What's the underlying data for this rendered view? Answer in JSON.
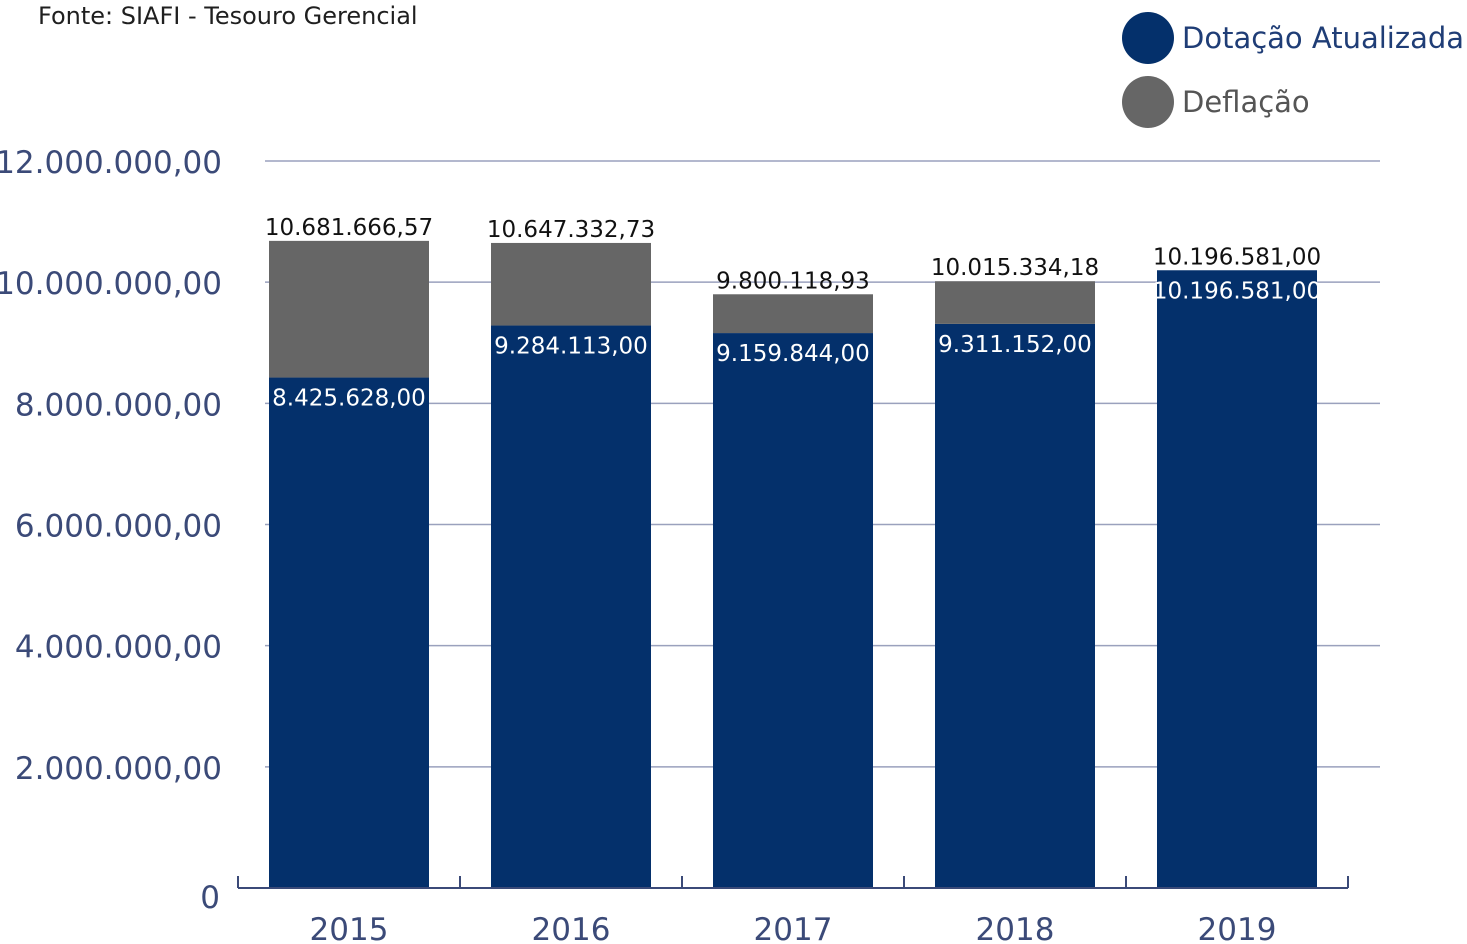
{
  "source_note": "Fonte: SIAFI - Tesouro Gerencial",
  "colors": {
    "dotacao": "#04306b",
    "deflacao": "#666666",
    "axis_text": "#3b4a78",
    "grid": "#9aa1bd",
    "axis": "#3b4a78"
  },
  "legend": [
    {
      "label": "Dotação Atualizada",
      "color": "#04306b",
      "text_color": "#1f3d76"
    },
    {
      "label": "Deflação",
      "color": "#666666",
      "text_color": "#555555"
    }
  ],
  "chart_data": {
    "type": "bar",
    "stacked": true,
    "categories": [
      "2015",
      "2016",
      "2017",
      "2018",
      "2019"
    ],
    "series": [
      {
        "name": "Dotação Atualizada",
        "values": [
          8425628.0,
          9284113.0,
          9159844.0,
          9311152.0,
          10196581.0
        ]
      },
      {
        "name": "Deflação",
        "values": [
          2256038.57,
          1363219.73,
          640274.93,
          704182.18,
          0
        ]
      }
    ],
    "bar_labels": [
      "8.425.628,00",
      "9.284.113,00",
      "9.159.844,00",
      "9.311.152,00",
      "10.196.581,00"
    ],
    "total_labels": [
      "10.681.666,57",
      "10.647.332,73",
      "9.800.118,93",
      "10.015.334,18",
      "10.196.581,00"
    ],
    "totals": [
      10681666.57,
      10647332.73,
      9800118.93,
      10015334.18,
      10196581.0
    ],
    "ylim": [
      0,
      12000000
    ],
    "yticks": [
      0,
      2000000,
      4000000,
      6000000,
      8000000,
      10000000,
      12000000
    ],
    "ytick_labels": [
      "0",
      "2.000.000,00",
      "4.000.000,00",
      "6.000.000,00",
      "8.000.000,00",
      "10.000.000,00",
      "12.000.000,00"
    ],
    "grid": true,
    "legend_position": "top-right"
  }
}
